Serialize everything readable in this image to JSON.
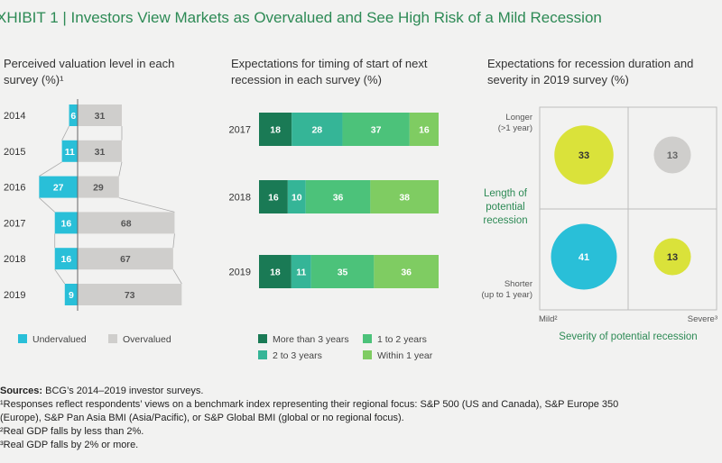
{
  "exhibit": {
    "title": "XHIBIT 1 | Investors View Markets as Overvalued and See High Risk of a Mild Recession"
  },
  "colors": {
    "undervalued": "#29bfd8",
    "overvalued": "#cfcecc",
    "more_than_3": "#1a7a55",
    "two_to_3": "#35b597",
    "one_to_2": "#4cc27a",
    "within_1": "#7fcc62",
    "bubble_cyan": "#29bfd8",
    "bubble_yellow": "#dae23a",
    "bubble_gray": "#cfcecc",
    "accent_green": "#2d8a55"
  },
  "chart_data": [
    {
      "type": "bar",
      "title": "Perceived valuation level in each survey (%)¹",
      "categories": [
        "2014",
        "2015",
        "2016",
        "2017",
        "2018",
        "2019"
      ],
      "series": [
        {
          "name": "Undervalued",
          "values": [
            6,
            11,
            27,
            16,
            16,
            9
          ]
        },
        {
          "name": "Overvalued",
          "values": [
            31,
            31,
            29,
            68,
            67,
            73
          ]
        }
      ],
      "legend": [
        "Undervalued",
        "Overvalued"
      ]
    },
    {
      "type": "bar",
      "title": "Expectations for timing of start of next recession in each survey (%)",
      "categories": [
        "2017",
        "2018",
        "2019"
      ],
      "series": [
        {
          "name": "More than 3 years",
          "values": [
            18,
            16,
            18
          ]
        },
        {
          "name": "2 to 3 years",
          "values": [
            28,
            10,
            11
          ]
        },
        {
          "name": "1 to 2 years",
          "values": [
            37,
            36,
            35
          ]
        },
        {
          "name": "Within 1 year",
          "values": [
            16,
            38,
            36
          ]
        }
      ],
      "legend": [
        "More than 3 years",
        "1 to 2 years",
        "2 to 3 years",
        "Within 1 year"
      ]
    },
    {
      "type": "scatter",
      "title": "Expectations for recession duration and severity in 2019 survey (%)",
      "ylabel": "Length of potential recession",
      "xlabel": "Severity of potential recession",
      "x_ticks": [
        "Mild²",
        "Severe³"
      ],
      "y_ticks": [
        "Longer (>1 year)",
        "Shorter (up to 1 year)"
      ],
      "points": [
        {
          "severity": "Mild²",
          "length": "Longer (>1 year)",
          "value": 33,
          "color": "bubble_yellow"
        },
        {
          "severity": "Severe³",
          "length": "Longer (>1 year)",
          "value": 13,
          "color": "bubble_gray"
        },
        {
          "severity": "Mild²",
          "length": "Shorter (up to 1 year)",
          "value": 41,
          "color": "bubble_cyan"
        },
        {
          "severity": "Severe³",
          "length": "Shorter (up to 1 year)",
          "value": 13,
          "color": "bubble_yellow"
        }
      ]
    }
  ],
  "panel1": {
    "title_line1": "Perceived valuation level in each",
    "title_line2": "survey (%)¹",
    "legend_undervalued": "Undervalued",
    "legend_overvalued": "Overvalued"
  },
  "panel2": {
    "title_line1": "Expectations for timing of start of next",
    "title_line2": "recession in each survey (%)",
    "legend_more3": "More than 3 years",
    "legend_1to2": "1 to 2 years",
    "legend_2to3": "2 to 3 years",
    "legend_within1": "Within 1 year"
  },
  "panel3": {
    "title_line1": "Expectations for recession duration and",
    "title_line2": "severity in 2019 survey (%)",
    "longer_line1": "Longer",
    "longer_line2": "(>1 year)",
    "shorter_line1": "Shorter",
    "shorter_line2": "(up to 1 year)",
    "length_line1": "Length of",
    "length_line2": "potential",
    "length_line3": "recession",
    "mild": "Mild²",
    "severe": "Severe³",
    "severity_label": "Severity of potential recession"
  },
  "sources": {
    "label": "Sources:",
    "text": " BCG’s 2014–2019 investor surveys.",
    "note1": "¹Responses reflect respondents’ views on a benchmark index representing their regional focus: S&P 500 (US and Canada), S&P Europe 350",
    "note1b": "(Europe), S&P Pan Asia BMI (Asia/Pacific), or S&P Global BMI (global or no regional focus).",
    "note2": "²Real GDP falls by less than 2%.",
    "note3": "³Real GDP falls by 2% or more."
  }
}
